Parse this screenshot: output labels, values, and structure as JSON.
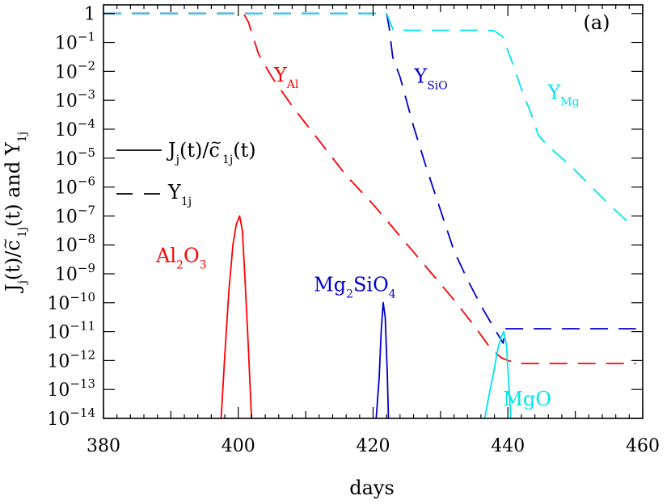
{
  "chart_data": {
    "type": "line",
    "panel_label": "(a)",
    "xlabel": "days",
    "ylabel": "J_j(t)/c̃_1j(t) and Y_1j",
    "xlim": [
      380,
      460
    ],
    "ylim_log10": [
      -14,
      0.3
    ],
    "y_scale": "log",
    "x_ticks": [
      380,
      400,
      420,
      440,
      460
    ],
    "y_tick_exponents": [
      0,
      -1,
      -2,
      -3,
      -4,
      -5,
      -6,
      -7,
      -8,
      -9,
      -10,
      -11,
      -12,
      -13,
      -14
    ],
    "legend": {
      "placement": "left-middle",
      "solid": "J_j(t)/c̃_1j(t)",
      "dashed": "Y_1j"
    },
    "colors": {
      "Al": "#ff0000",
      "SiO": "#0000cc",
      "Mg": "#00e5ee",
      "axes": "#000000"
    },
    "series": [
      {
        "name": "Y_Al",
        "style": "dashed",
        "color_key": "Al",
        "x": [
          380,
          400.8,
          401.5,
          403,
          405,
          408,
          412,
          416,
          420,
          424,
          428,
          432,
          435,
          437.5,
          439,
          440,
          441,
          442,
          443,
          446,
          450,
          455,
          459
        ],
        "log10y": [
          0,
          0,
          -0.3,
          -1.4,
          -2.2,
          -3.2,
          -4.4,
          -5.6,
          -6.6,
          -7.7,
          -8.8,
          -9.9,
          -10.8,
          -11.6,
          -11.9,
          -12.0,
          -12.06,
          -12.1,
          -12.1,
          -12.1,
          -12.1,
          -12.1,
          -12.1
        ]
      },
      {
        "name": "Y_SiO",
        "style": "dashed",
        "color_key": "SiO",
        "x": [
          380,
          422,
          422.4,
          422.9,
          424,
          426,
          428,
          430,
          432,
          434,
          436,
          438,
          439.3,
          439.5,
          441,
          445,
          450,
          455,
          459
        ],
        "log10y": [
          0,
          0,
          -0.5,
          -1.5,
          -2.2,
          -3.9,
          -5.4,
          -6.8,
          -8.2,
          -9.2,
          -10.1,
          -10.9,
          -11.4,
          -10.9,
          -10.9,
          -10.9,
          -10.9,
          -10.9,
          -10.9
        ]
      },
      {
        "name": "Y_Mg",
        "style": "dashed",
        "color_key": "Mg",
        "x": [
          380,
          422,
          423,
          428,
          434,
          437,
          438,
          439.2,
          440.5,
          442,
          443.5,
          444.5,
          446,
          449,
          452,
          455,
          458.2
        ],
        "log10y": [
          0,
          0,
          -0.58,
          -0.58,
          -0.58,
          -0.58,
          -0.6,
          -0.8,
          -1.6,
          -2.6,
          -3.5,
          -4.2,
          -4.6,
          -5.2,
          -5.9,
          -6.6,
          -7.3
        ]
      },
      {
        "name": "J_Al2O3",
        "style": "solid",
        "color_key": "Al",
        "x": [
          397.4,
          398,
          398.6,
          399.2,
          399.7,
          400.2,
          400.6,
          401,
          401.5,
          402
        ],
        "log10y": [
          -14.2,
          -11.8,
          -9.6,
          -8.0,
          -7.3,
          -7.0,
          -7.5,
          -9.2,
          -11.6,
          -14.2
        ]
      },
      {
        "name": "J_Mg2SiO4",
        "style": "solid",
        "color_key": "SiO",
        "x": [
          420.4,
          420.9,
          421.2,
          421.5,
          421.8,
          422.1,
          422.3
        ],
        "log10y": [
          -14.2,
          -12.6,
          -11.0,
          -10.0,
          -10.5,
          -12.4,
          -14.2
        ]
      },
      {
        "name": "J_MgO",
        "style": "solid",
        "color_key": "Mg",
        "x": [
          436.4,
          437.2,
          437.9,
          438.5,
          439,
          439.4,
          439.8,
          440.1,
          440.5
        ],
        "log10y": [
          -14.2,
          -13.2,
          -12.4,
          -11.6,
          -11.2,
          -11.0,
          -11.5,
          -12.7,
          -14.2
        ]
      }
    ],
    "annotations": [
      {
        "text": "Y",
        "sub": "Al",
        "color_key": "Al",
        "x": 405.3,
        "log10y": -2.35
      },
      {
        "text": "Y",
        "sub": "SiO",
        "color_key": "SiO",
        "x": 426.1,
        "log10y": -2.4
      },
      {
        "text": "Y",
        "sub": "Mg",
        "color_key": "Mg",
        "x": 445.9,
        "log10y": -2.95
      },
      {
        "text": "Al",
        "sub1": "2",
        "mid": "O",
        "sub2": "3",
        "color_key": "Al",
        "x": 387.8,
        "log10y": -8.6
      },
      {
        "text": "Mg",
        "sub1": "2",
        "mid": "SiO",
        "sub2": "4",
        "color_key": "SiO",
        "x": 411.2,
        "log10y": -9.6
      },
      {
        "text": "MgO",
        "color_key": "Mg",
        "x": 439.3,
        "log10y": -13.55
      }
    ]
  }
}
